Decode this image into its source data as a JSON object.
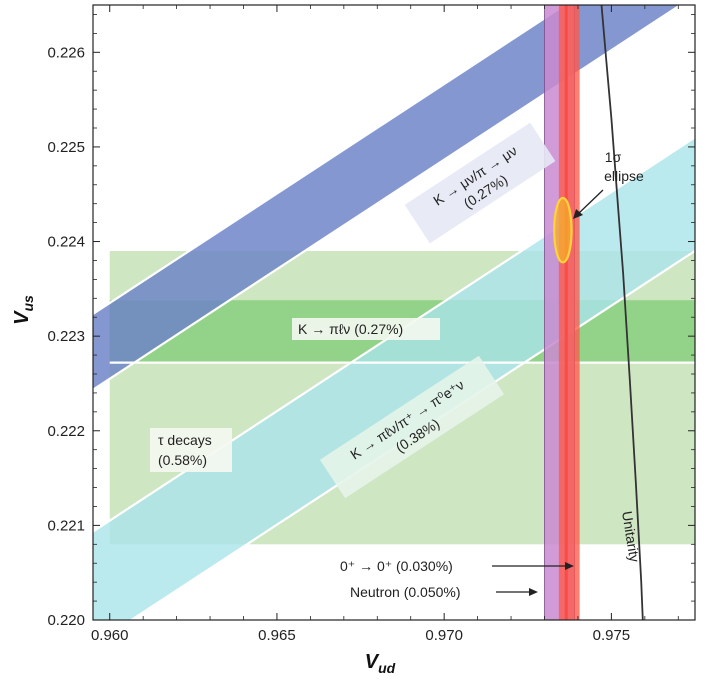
{
  "chart_data": {
    "type": "band",
    "xlabel": "V",
    "xlabel_sub": "ud",
    "ylabel": "V",
    "ylabel_sub": "us",
    "xlim": [
      0.9595,
      0.9775
    ],
    "ylim": [
      0.22,
      0.2265
    ],
    "xticks": [
      "0.960",
      "0.965",
      "0.970",
      "0.975"
    ],
    "xtick_values": [
      0.96,
      0.965,
      0.97,
      0.975
    ],
    "yticks": [
      "0.220",
      "0.221",
      "0.222",
      "0.223",
      "0.224",
      "0.225",
      "0.226"
    ],
    "ytick_values": [
      0.22,
      0.221,
      0.222,
      0.223,
      0.224,
      0.225,
      0.226
    ],
    "colors": {
      "tau": "#cfe6c3",
      "kpilnu": "#7fcc76",
      "kmunu": "#6f85c8",
      "kratio": "#a9e3ea",
      "neutron": "#c98ad0",
      "superallowed": "#ff5a4a",
      "ellipse": "#f5a623",
      "unitarity": "#333333"
    },
    "bands": [
      {
        "key": "tau",
        "orientation": "horizontal",
        "y_low": 0.2208,
        "y_high": 0.2239,
        "label_lines": [
          "τ decays",
          "(0.58%)"
        ]
      },
      {
        "key": "kpilnu",
        "orientation": "horizontal",
        "y_low": 0.22272,
        "y_high": 0.22338,
        "label_lines": [
          "K → πℓν (0.27%)"
        ]
      },
      {
        "key": "kmunu",
        "orientation": "sloped",
        "slope": 0.2315,
        "x0": 0.96,
        "y_low_at_x0": 0.22255,
        "y_high_at_x0": 0.22335,
        "label_lines": [
          "K → μν/π → μν",
          "(0.27%)"
        ]
      },
      {
        "key": "kratio",
        "orientation": "sloped",
        "slope": 0.2315,
        "x0": 0.96,
        "y_low_at_x0": 0.21985,
        "y_high_at_x0": 0.22105,
        "label_lines": [
          "K → πℓν/π⁺ → π⁰e⁺ν",
          "(0.38%)"
        ]
      },
      {
        "key": "neutron",
        "orientation": "vertical",
        "x_low": 0.973,
        "x_high": 0.9739,
        "label_lines": [
          "Neutron (0.050%)"
        ]
      },
      {
        "key": "superallowed",
        "orientation": "vertical",
        "x_low": 0.97343,
        "x_high": 0.97405,
        "label_lines": [
          "0⁺ → 0⁺ (0.030%)"
        ]
      }
    ],
    "ellipse": {
      "x": 0.97355,
      "y": 0.22412,
      "rx": 0.00026,
      "ry": 0.00034,
      "label_lines": [
        "1σ",
        "ellipse"
      ]
    },
    "unitarity": {
      "label": "Unitarity",
      "curve": [
        [
          0.97469,
          0.22656
        ],
        [
          0.97485,
          0.2259
        ],
        [
          0.975,
          0.2253
        ],
        [
          0.9752,
          0.22436
        ],
        [
          0.97535,
          0.22367
        ],
        [
          0.97555,
          0.22254
        ],
        [
          0.97573,
          0.22146
        ],
        [
          0.97589,
          0.22041
        ],
        [
          0.97594,
          0.22
        ]
      ]
    },
    "grid": false,
    "legend": "none"
  }
}
